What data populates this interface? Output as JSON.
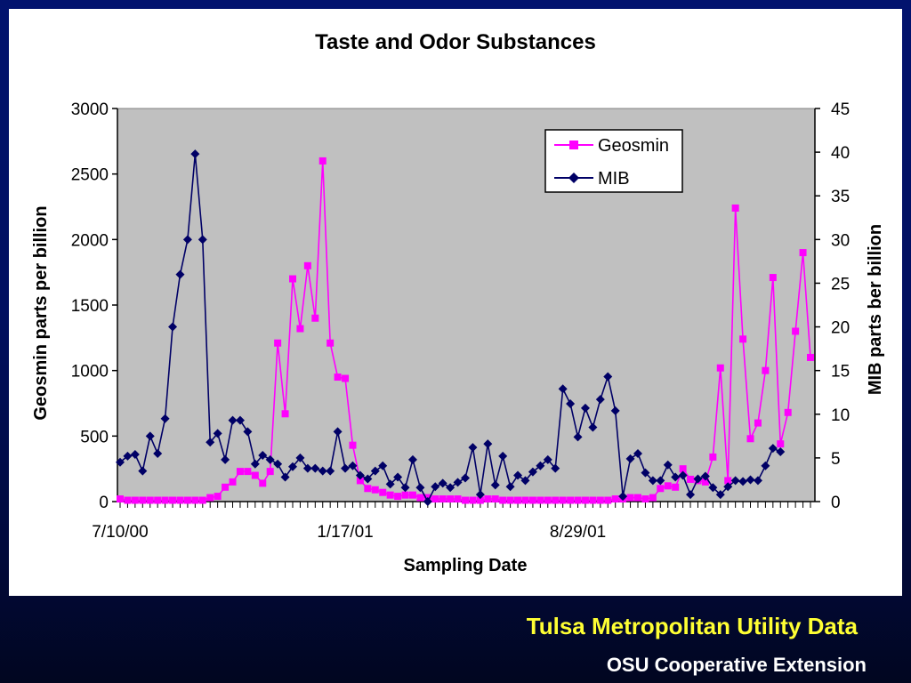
{
  "footer": {
    "line1": "Tulsa Metropolitan Utility Data",
    "line2": "OSU Cooperative Extension"
  },
  "colors": {
    "geosmin": "#ff00ff",
    "mib": "#000066",
    "plot_bg": "#c0c0c0",
    "footer_accent": "#ffff33"
  },
  "chart_data": {
    "type": "line",
    "title": "Taste and Odor Substances",
    "xlabel": "Sampling Date",
    "ylabel": "Geosmin parts per billion",
    "y2label": "MIB parts ber billion",
    "ylim": [
      0,
      3000
    ],
    "y2lim": [
      0,
      45
    ],
    "yticks": [
      0,
      500,
      1000,
      1500,
      2000,
      2500,
      3000
    ],
    "y2ticks": [
      0,
      5,
      10,
      15,
      20,
      25,
      30,
      35,
      40,
      45
    ],
    "xticklabels": [
      {
        "label": "7/10/00",
        "index": 0
      },
      {
        "label": "1/17/01",
        "index": 30
      },
      {
        "label": "8/29/01",
        "index": 61
      }
    ],
    "grid": false,
    "legend": "top-right",
    "series": [
      {
        "name": "Geosmin",
        "axis": "left",
        "marker": "square",
        "values": [
          20,
          10,
          10,
          10,
          10,
          10,
          10,
          10,
          10,
          10,
          10,
          10,
          30,
          40,
          110,
          150,
          230,
          230,
          200,
          140,
          230,
          1210,
          670,
          1700,
          1320,
          1800,
          1400,
          2600,
          1210,
          950,
          940,
          430,
          160,
          100,
          90,
          70,
          50,
          40,
          50,
          50,
          30,
          30,
          20,
          20,
          20,
          20,
          10,
          10,
          10,
          20,
          20,
          10,
          10,
          10,
          10,
          10,
          10,
          10,
          10,
          10,
          10,
          10,
          10,
          10,
          10,
          10,
          20,
          20,
          30,
          30,
          20,
          30,
          100,
          120,
          110,
          250,
          170,
          160,
          150,
          340,
          1020,
          160,
          2240,
          1240,
          480,
          600,
          1000,
          1710,
          440,
          680,
          1300,
          1900,
          1100
        ]
      },
      {
        "name": "MIB",
        "axis": "right",
        "marker": "diamond",
        "values": [
          4.5,
          5.2,
          5.4,
          3.5,
          7.5,
          5.5,
          9.5,
          20,
          26,
          30,
          39.8,
          30,
          6.8,
          7.8,
          4.8,
          9.3,
          9.3,
          8,
          4.3,
          5.3,
          4.8,
          4.3,
          2.8,
          4,
          5,
          3.8,
          3.8,
          3.5,
          3.5,
          8,
          3.8,
          4.1,
          3,
          2.6,
          3.5,
          4.1,
          2,
          2.8,
          1.6,
          4.8,
          1.6,
          0,
          1.7,
          2.1,
          1.6,
          2.2,
          2.7,
          6.2,
          0.8,
          6.6,
          1.9,
          5.2,
          1.7,
          3,
          2.4,
          3.4,
          4.1,
          4.8,
          3.8,
          12.9,
          11.2,
          7.4,
          10.7,
          8.5,
          11.7,
          14.3,
          10.4,
          0.6,
          4.9,
          5.5,
          3.3,
          2.4,
          2.4,
          4.2,
          2.8,
          3,
          0.8,
          2.6,
          2.9,
          1.6,
          0.8,
          1.7,
          2.4,
          2.3,
          2.5,
          2.4,
          4.1,
          6.1,
          5.7
        ]
      }
    ]
  }
}
